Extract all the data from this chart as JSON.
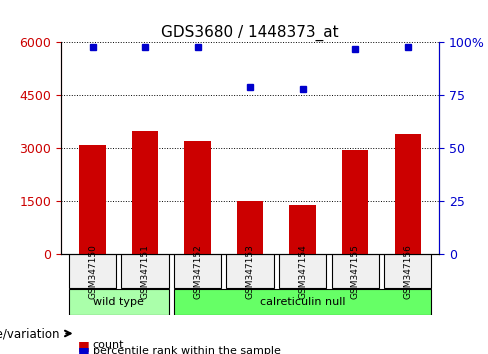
{
  "title": "GDS3680 / 1448373_at",
  "samples": [
    "GSM347150",
    "GSM347151",
    "GSM347152",
    "GSM347153",
    "GSM347154",
    "GSM347155",
    "GSM347156"
  ],
  "counts": [
    3100,
    3500,
    3200,
    1500,
    1400,
    2950,
    3400
  ],
  "percentiles": [
    98,
    98,
    98,
    79,
    78,
    97,
    98
  ],
  "bar_color": "#cc0000",
  "dot_color": "#0000cc",
  "left_ylim": [
    0,
    6000
  ],
  "right_ylim": [
    0,
    100
  ],
  "left_yticks": [
    0,
    1500,
    3000,
    4500,
    6000
  ],
  "right_yticks": [
    0,
    25,
    50,
    75,
    100
  ],
  "right_yticklabels": [
    "0",
    "25",
    "50",
    "75",
    "100%"
  ],
  "genotype_groups": [
    {
      "label": "wild type",
      "samples": [
        "GSM347150",
        "GSM347151"
      ],
      "color": "#aaffaa"
    },
    {
      "label": "calreticulin null",
      "samples": [
        "GSM347152",
        "GSM347153",
        "GSM347154",
        "GSM347155",
        "GSM347156"
      ],
      "color": "#66ff66"
    }
  ],
  "legend_count_label": "count",
  "legend_percentile_label": "percentile rank within the sample",
  "genotype_label": "genotype/variation",
  "grid_color": "black",
  "tick_label_color_left": "#cc0000",
  "tick_label_color_right": "#0000cc",
  "bg_color": "#f0f0f0"
}
